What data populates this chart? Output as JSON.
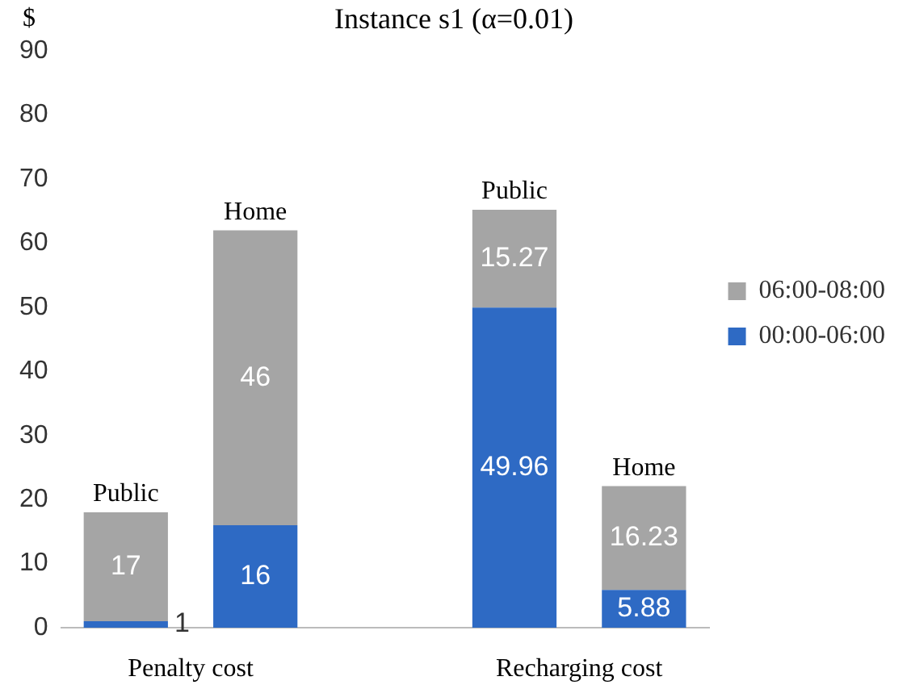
{
  "chart_data": {
    "type": "bar",
    "title": "Instance s1 (α=0.01)",
    "ylabel": "$",
    "categories": [
      "Public",
      "Home",
      null,
      "Public",
      "Home"
    ],
    "stacked": true,
    "data_labels": true,
    "legend": "right",
    "grid": false,
    "ylim": [
      0,
      90
    ],
    "yticks": [
      0,
      10,
      20,
      30,
      40,
      50,
      60,
      70,
      80,
      90
    ],
    "series": [
      {
        "name": "00:00-06:00",
        "color": "#2e6ac4",
        "values": [
          1,
          16,
          null,
          49.96,
          5.88
        ]
      },
      {
        "name": "06:00-08:00",
        "color": "#a5a5a5",
        "values": [
          17,
          46,
          null,
          15.27,
          16.23
        ]
      }
    ],
    "annotations": [
      "Penalty cost",
      "Recharging cost"
    ]
  }
}
